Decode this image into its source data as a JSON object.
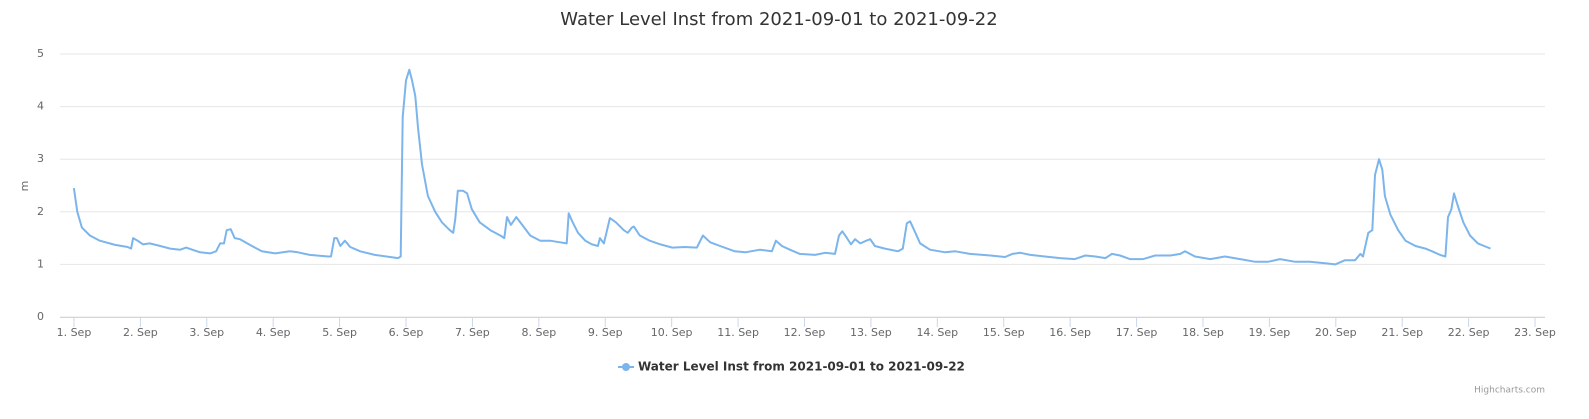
{
  "chart_data": {
    "type": "line",
    "title": "Water Level Inst from 2021-09-01 to 2021-09-22",
    "y_label": "m",
    "credits": "Highcharts.com",
    "legend": "bottom",
    "grid": true,
    "xlim": [
      0.79,
      23.15
    ],
    "xticks": [
      {
        "value": 1,
        "label": "1. Sep"
      },
      {
        "value": 2,
        "label": "2. Sep"
      },
      {
        "value": 3,
        "label": "3. Sep"
      },
      {
        "value": 4,
        "label": "4. Sep"
      },
      {
        "value": 5,
        "label": "5. Sep"
      },
      {
        "value": 6,
        "label": "6. Sep"
      },
      {
        "value": 7,
        "label": "7. Sep"
      },
      {
        "value": 8,
        "label": "8. Sep"
      },
      {
        "value": 9,
        "label": "9. Sep"
      },
      {
        "value": 10,
        "label": "10. Sep"
      },
      {
        "value": 11,
        "label": "11. Sep"
      },
      {
        "value": 12,
        "label": "12. Sep"
      },
      {
        "value": 13,
        "label": "13. Sep"
      },
      {
        "value": 14,
        "label": "14. Sep"
      },
      {
        "value": 15,
        "label": "15. Sep"
      },
      {
        "value": 16,
        "label": "16. Sep"
      },
      {
        "value": 17,
        "label": "17. Sep"
      },
      {
        "value": 18,
        "label": "18. Sep"
      },
      {
        "value": 19,
        "label": "19. Sep"
      },
      {
        "value": 20,
        "label": "20. Sep"
      },
      {
        "value": 21,
        "label": "21. Sep"
      },
      {
        "value": 22,
        "label": "22. Sep"
      },
      {
        "value": 23,
        "label": "23. Sep"
      }
    ],
    "ylim": [
      0,
      5
    ],
    "yticks": [
      0,
      1,
      2,
      3,
      4,
      5
    ],
    "x": [
      1.0,
      1.05,
      1.12,
      1.24,
      1.39,
      1.62,
      1.81,
      1.86,
      1.89,
      1.96,
      2.04,
      2.14,
      2.3,
      2.45,
      2.6,
      2.69,
      2.78,
      2.9,
      3.05,
      3.14,
      3.2,
      3.26,
      3.3,
      3.36,
      3.42,
      3.5,
      3.65,
      3.83,
      4.03,
      4.25,
      4.37,
      4.55,
      4.83,
      4.87,
      4.92,
      4.96,
      5.01,
      5.08,
      5.16,
      5.31,
      5.53,
      5.76,
      5.88,
      5.92,
      5.95,
      6.0,
      6.05,
      6.09,
      6.14,
      6.18,
      6.24,
      6.33,
      6.44,
      6.54,
      6.66,
      6.71,
      6.74,
      6.78,
      6.86,
      6.92,
      6.99,
      7.11,
      7.27,
      7.42,
      7.48,
      7.52,
      7.58,
      7.66,
      7.75,
      7.87,
      8.02,
      8.17,
      8.32,
      8.42,
      8.45,
      8.51,
      8.59,
      8.7,
      8.8,
      8.89,
      8.92,
      8.98,
      9.07,
      9.16,
      9.28,
      9.34,
      9.4,
      9.43,
      9.52,
      9.67,
      9.83,
      10.01,
      10.2,
      10.38,
      10.47,
      10.58,
      10.73,
      10.95,
      11.11,
      11.33,
      11.51,
      11.57,
      11.66,
      11.78,
      11.93,
      12.16,
      12.31,
      12.46,
      12.52,
      12.57,
      12.64,
      12.7,
      12.76,
      12.84,
      12.93,
      12.99,
      13.06,
      13.21,
      13.41,
      13.48,
      13.54,
      13.59,
      13.67,
      13.74,
      13.89,
      14.12,
      14.27,
      14.49,
      14.8,
      15.02,
      15.13,
      15.25,
      15.4,
      15.62,
      15.85,
      16.07,
      16.23,
      16.38,
      16.53,
      16.63,
      16.75,
      16.9,
      17.1,
      17.28,
      17.51,
      17.66,
      17.73,
      17.88,
      18.11,
      18.33,
      18.56,
      18.79,
      18.98,
      19.16,
      19.39,
      19.61,
      19.84,
      19.99,
      20.14,
      20.29,
      20.37,
      20.41,
      20.49,
      20.55,
      20.59,
      20.65,
      20.7,
      20.74,
      20.82,
      20.94,
      21.05,
      21.2,
      21.35,
      21.45,
      21.57,
      21.65,
      21.69,
      21.74,
      21.78,
      21.84,
      21.92,
      22.02,
      22.14,
      22.27,
      22.33
    ],
    "series": [
      {
        "name": "Water Level Inst from 2021-09-01 to 2021-09-22",
        "color": "#7cb5ec",
        "values": [
          2.45,
          2.0,
          1.7,
          1.55,
          1.45,
          1.37,
          1.33,
          1.3,
          1.5,
          1.45,
          1.38,
          1.4,
          1.35,
          1.3,
          1.28,
          1.32,
          1.28,
          1.23,
          1.21,
          1.25,
          1.4,
          1.4,
          1.65,
          1.67,
          1.5,
          1.48,
          1.37,
          1.25,
          1.21,
          1.25,
          1.23,
          1.18,
          1.15,
          1.15,
          1.5,
          1.5,
          1.35,
          1.45,
          1.33,
          1.25,
          1.18,
          1.14,
          1.12,
          1.15,
          3.8,
          4.5,
          4.7,
          4.5,
          4.2,
          3.6,
          2.9,
          2.3,
          2.0,
          1.8,
          1.65,
          1.6,
          1.85,
          2.4,
          2.4,
          2.35,
          2.05,
          1.8,
          1.65,
          1.55,
          1.5,
          1.9,
          1.75,
          1.9,
          1.75,
          1.55,
          1.45,
          1.45,
          1.42,
          1.4,
          1.97,
          1.8,
          1.6,
          1.45,
          1.38,
          1.35,
          1.5,
          1.4,
          1.88,
          1.8,
          1.65,
          1.6,
          1.7,
          1.72,
          1.55,
          1.45,
          1.38,
          1.32,
          1.33,
          1.32,
          1.55,
          1.42,
          1.35,
          1.25,
          1.23,
          1.28,
          1.25,
          1.45,
          1.35,
          1.28,
          1.2,
          1.18,
          1.22,
          1.2,
          1.55,
          1.63,
          1.5,
          1.38,
          1.48,
          1.4,
          1.45,
          1.48,
          1.35,
          1.3,
          1.25,
          1.3,
          1.78,
          1.82,
          1.6,
          1.4,
          1.28,
          1.23,
          1.25,
          1.2,
          1.17,
          1.14,
          1.2,
          1.22,
          1.18,
          1.15,
          1.12,
          1.1,
          1.17,
          1.15,
          1.12,
          1.2,
          1.17,
          1.1,
          1.1,
          1.17,
          1.17,
          1.2,
          1.25,
          1.15,
          1.1,
          1.15,
          1.1,
          1.05,
          1.05,
          1.1,
          1.05,
          1.05,
          1.02,
          1.0,
          1.08,
          1.08,
          1.2,
          1.15,
          1.6,
          1.65,
          2.7,
          3.0,
          2.8,
          2.3,
          1.95,
          1.65,
          1.45,
          1.35,
          1.3,
          1.25,
          1.18,
          1.15,
          1.9,
          2.05,
          2.35,
          2.1,
          1.8,
          1.55,
          1.4,
          1.33,
          1.3
        ]
      }
    ]
  }
}
